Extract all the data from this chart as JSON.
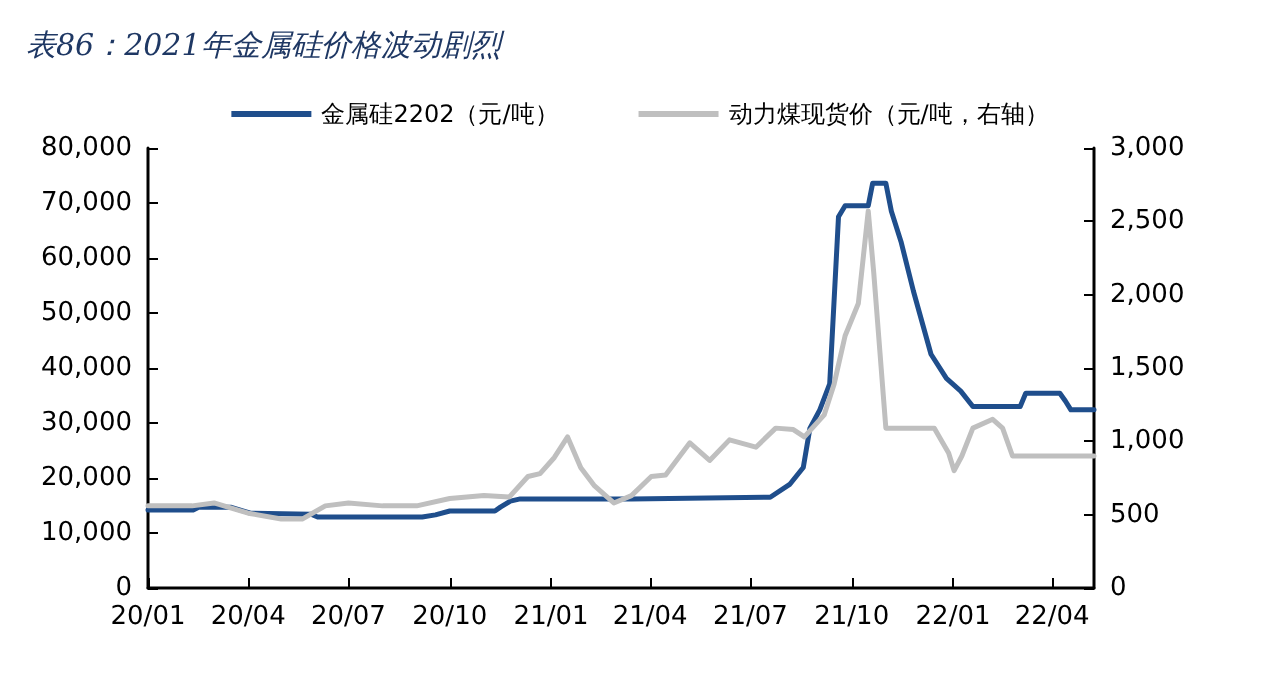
{
  "chart_data": {
    "type": "line",
    "title": "表86：2021年金属硅价格波动剧烈",
    "xlim": [
      "2020-01-01",
      "2022-05-09"
    ],
    "xticks": [
      {
        "value": "2020-01-01",
        "label": "20/01"
      },
      {
        "value": "2020-04-01",
        "label": "20/04"
      },
      {
        "value": "2020-07-01",
        "label": "20/07"
      },
      {
        "value": "2020-10-01",
        "label": "20/10"
      },
      {
        "value": "2021-01-01",
        "label": "21/01"
      },
      {
        "value": "2021-04-01",
        "label": "21/04"
      },
      {
        "value": "2021-07-01",
        "label": "21/07"
      },
      {
        "value": "2021-10-01",
        "label": "21/10"
      },
      {
        "value": "2022-01-01",
        "label": "22/01"
      },
      {
        "value": "2022-04-01",
        "label": "22/04"
      }
    ],
    "ylim": [
      0,
      80000
    ],
    "yticks": [
      0,
      {
        "value": 10000,
        "label": "10,000"
      },
      {
        "value": 20000,
        "label": "20,000"
      },
      {
        "value": 30000,
        "label": "30,000"
      },
      {
        "value": 40000,
        "label": "40,000"
      },
      {
        "value": 50000,
        "label": "50,000"
      },
      {
        "value": 60000,
        "label": "60,000"
      },
      {
        "value": 70000,
        "label": "70,000"
      },
      {
        "value": 80000,
        "label": "80,000"
      }
    ],
    "y2lim": [
      0,
      3000
    ],
    "y2ticks": [
      0,
      500,
      {
        "value": 1000,
        "label": "1,000"
      },
      {
        "value": 1500,
        "label": "1,500"
      },
      {
        "value": 2000,
        "label": "2,000"
      },
      {
        "value": 2500,
        "label": "2,500"
      },
      {
        "value": 3000,
        "label": "3,000"
      }
    ],
    "legend": "top",
    "grid": false,
    "marker": "none",
    "line_style": "solid",
    "series": [
      {
        "name": "金属硅2202（元/吨）",
        "color": "#1f4e8c",
        "x": [
          "2020-01-01",
          "2020-02-11",
          "2020-02-16",
          "2020-03-16",
          "2020-04-03",
          "2020-05-28",
          "2020-06-03",
          "2020-09-06",
          "2020-09-18",
          "2020-10-01",
          "2020-11-11",
          "2020-11-16",
          "2020-11-25",
          "2020-12-04",
          "2021-03-15",
          "2021-07-19",
          "2021-08-06",
          "2021-08-18",
          "2021-08-24",
          "2021-09-02",
          "2021-09-11",
          "2021-09-19",
          "2021-09-25",
          "2021-10-16",
          "2021-10-20",
          "2021-11-01",
          "2021-11-06",
          "2021-11-15",
          "2021-11-26",
          "2021-12-12",
          "2021-12-26",
          "2022-01-08",
          "2022-01-19",
          "2022-03-03",
          "2022-03-08",
          "2022-04-08",
          "2022-04-13",
          "2022-04-18",
          "2022-05-09"
        ],
        "values": [
          14200,
          14200,
          14700,
          14700,
          13600,
          13400,
          12900,
          12900,
          13300,
          14000,
          14000,
          14700,
          15800,
          16200,
          16200,
          16500,
          18900,
          21900,
          29000,
          32400,
          37100,
          67500,
          69500,
          69500,
          73600,
          73600,
          68500,
          62800,
          54000,
          42500,
          38100,
          35800,
          33000,
          33000,
          35400,
          35400,
          34000,
          32400,
          32400
        ]
      },
      {
        "name": "动力煤现货价（元/吨，右轴）",
        "color": "#bfbfbf",
        "axis": "y2",
        "x": [
          "2020-01-01",
          "2020-02-10",
          "2020-03-01",
          "2020-04-01",
          "2020-05-01",
          "2020-05-20",
          "2020-06-10",
          "2020-07-01",
          "2020-08-01",
          "2020-09-01",
          "2020-10-01",
          "2020-11-01",
          "2020-11-24",
          "2020-12-11",
          "2020-12-22",
          "2021-01-04",
          "2021-01-16",
          "2021-01-28",
          "2021-02-09",
          "2021-02-27",
          "2021-03-15",
          "2021-04-02",
          "2021-04-15",
          "2021-05-07",
          "2021-05-25",
          "2021-06-12",
          "2021-07-06",
          "2021-07-24",
          "2021-08-09",
          "2021-08-19",
          "2021-09-06",
          "2021-09-15",
          "2021-09-25",
          "2021-10-07",
          "2021-10-16",
          "2021-10-21",
          "2021-11-01",
          "2021-12-15",
          "2021-12-28",
          "2022-01-02",
          "2022-01-09",
          "2022-01-19",
          "2022-02-06",
          "2022-02-15",
          "2022-02-24",
          "2022-05-09"
        ],
        "values": [
          560,
          560,
          580,
          510,
          470,
          470,
          560,
          580,
          560,
          560,
          610,
          630,
          620,
          760,
          780,
          890,
          1030,
          820,
          700,
          580,
          630,
          760,
          770,
          990,
          870,
          1010,
          960,
          1090,
          1080,
          1030,
          1180,
          1390,
          1720,
          1940,
          2570,
          2150,
          1090,
          1090,
          920,
          800,
          900,
          1090,
          1150,
          1090,
          900,
          900
        ]
      }
    ]
  }
}
